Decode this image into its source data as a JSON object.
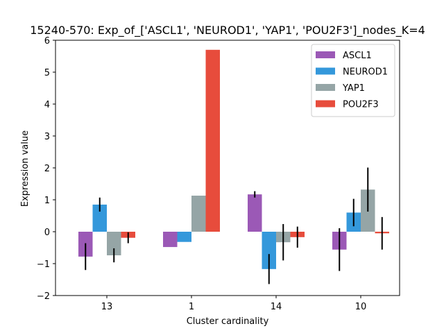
{
  "chart_data": {
    "type": "bar",
    "title": "15240-570: Exp_of_['ASCL1', 'NEUROD1', 'YAP1', 'POU2F3']_nodes_K=4",
    "xlabel": "Cluster cardinality",
    "ylabel": "Expression value",
    "categories": [
      "13",
      "1",
      "14",
      "10"
    ],
    "ylim": [
      -2,
      6
    ],
    "yticks": [
      -2,
      -1,
      0,
      1,
      2,
      3,
      4,
      5,
      6
    ],
    "legend_position": "top-right",
    "grid": false,
    "series": [
      {
        "name": "ASCL1",
        "color": "#9b59b6",
        "values": [
          -0.78,
          -0.48,
          1.17,
          -0.56
        ],
        "errors": [
          0.42,
          0.0,
          0.1,
          0.67
        ]
      },
      {
        "name": "NEUROD1",
        "color": "#3498db",
        "values": [
          0.85,
          -0.32,
          -1.17,
          0.6
        ],
        "errors": [
          0.22,
          0.0,
          0.47,
          0.43
        ]
      },
      {
        "name": "YAP1",
        "color": "#95a5a6",
        "values": [
          -0.74,
          1.13,
          -0.33,
          1.32
        ],
        "errors": [
          0.22,
          0.0,
          0.57,
          0.69
        ]
      },
      {
        "name": "POU2F3",
        "color": "#e74c3c",
        "values": [
          -0.19,
          5.7,
          -0.17,
          -0.05
        ],
        "errors": [
          0.17,
          0.0,
          0.33,
          0.51
        ]
      }
    ]
  }
}
